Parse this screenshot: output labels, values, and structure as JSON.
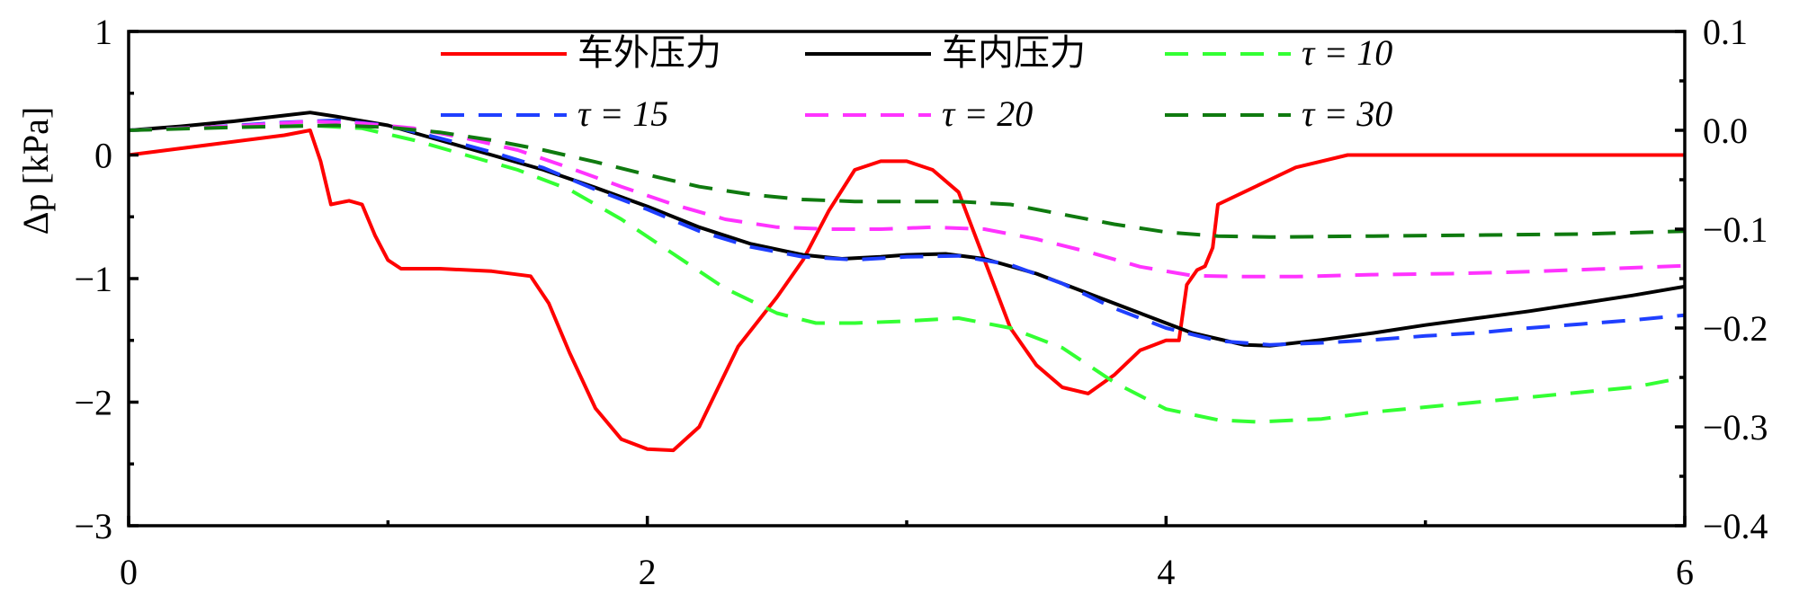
{
  "chart_data": {
    "type": "line",
    "title": "",
    "xlabel": "",
    "ylabel": "Δp [kPa]",
    "ylabel_right": "",
    "xlim": [
      0,
      6
    ],
    "ylim": [
      -3,
      1
    ],
    "ylim_right": [
      -0.4,
      0.1
    ],
    "grid": false,
    "legend_position": "top",
    "x_ticks": [
      "0",
      "2",
      "4",
      "6"
    ],
    "y_ticks_left": [
      "1",
      "0",
      "−1",
      "−2",
      "−3"
    ],
    "y_ticks_right": [
      "0.1",
      "0.0",
      "−0.1",
      "−0.2",
      "−0.3",
      "−0.4"
    ],
    "series": [
      {
        "name": "车外压力",
        "axis": "left",
        "color": "#ff0000",
        "style": "solid",
        "points": [
          [
            0,
            0
          ],
          [
            0.3,
            0.08
          ],
          [
            0.6,
            0.16
          ],
          [
            0.7,
            0.2
          ],
          [
            0.74,
            -0.05
          ],
          [
            0.78,
            -0.4
          ],
          [
            0.85,
            -0.37
          ],
          [
            0.9,
            -0.4
          ],
          [
            0.95,
            -0.65
          ],
          [
            1.0,
            -0.85
          ],
          [
            1.05,
            -0.92
          ],
          [
            1.2,
            -0.92
          ],
          [
            1.4,
            -0.94
          ],
          [
            1.55,
            -0.98
          ],
          [
            1.62,
            -1.2
          ],
          [
            1.7,
            -1.6
          ],
          [
            1.8,
            -2.05
          ],
          [
            1.9,
            -2.3
          ],
          [
            2.0,
            -2.38
          ],
          [
            2.1,
            -2.39
          ],
          [
            2.2,
            -2.2
          ],
          [
            2.35,
            -1.55
          ],
          [
            2.5,
            -1.15
          ],
          [
            2.6,
            -0.85
          ],
          [
            2.7,
            -0.45
          ],
          [
            2.8,
            -0.12
          ],
          [
            2.9,
            -0.05
          ],
          [
            3.0,
            -0.05
          ],
          [
            3.1,
            -0.12
          ],
          [
            3.2,
            -0.3
          ],
          [
            3.3,
            -0.85
          ],
          [
            3.4,
            -1.4
          ],
          [
            3.5,
            -1.7
          ],
          [
            3.6,
            -1.88
          ],
          [
            3.7,
            -1.93
          ],
          [
            3.8,
            -1.78
          ],
          [
            3.9,
            -1.58
          ],
          [
            4.0,
            -1.5
          ],
          [
            4.05,
            -1.5
          ],
          [
            4.08,
            -1.05
          ],
          [
            4.12,
            -0.93
          ],
          [
            4.15,
            -0.9
          ],
          [
            4.18,
            -0.75
          ],
          [
            4.2,
            -0.4
          ],
          [
            4.3,
            -0.3
          ],
          [
            4.4,
            -0.2
          ],
          [
            4.5,
            -0.1
          ],
          [
            4.6,
            -0.05
          ],
          [
            4.7,
            0
          ],
          [
            6,
            0
          ]
        ]
      },
      {
        "name": "车内压力",
        "axis": "right",
        "color": "#000000",
        "style": "solid",
        "points": [
          [
            0,
            0
          ],
          [
            0.2,
            0.004
          ],
          [
            0.4,
            0.009
          ],
          [
            0.6,
            0.015
          ],
          [
            0.7,
            0.018
          ],
          [
            0.8,
            0.014
          ],
          [
            1.0,
            0.005
          ],
          [
            1.2,
            -0.01
          ],
          [
            1.4,
            -0.025
          ],
          [
            1.6,
            -0.04
          ],
          [
            1.8,
            -0.058
          ],
          [
            2.0,
            -0.077
          ],
          [
            2.2,
            -0.098
          ],
          [
            2.4,
            -0.115
          ],
          [
            2.6,
            -0.126
          ],
          [
            2.75,
            -0.13
          ],
          [
            2.9,
            -0.128
          ],
          [
            3.0,
            -0.126
          ],
          [
            3.15,
            -0.125
          ],
          [
            3.3,
            -0.13
          ],
          [
            3.5,
            -0.145
          ],
          [
            3.7,
            -0.165
          ],
          [
            3.9,
            -0.185
          ],
          [
            4.1,
            -0.205
          ],
          [
            4.3,
            -0.217
          ],
          [
            4.4,
            -0.218
          ],
          [
            4.6,
            -0.212
          ],
          [
            4.8,
            -0.205
          ],
          [
            5.0,
            -0.197
          ],
          [
            5.2,
            -0.19
          ],
          [
            5.4,
            -0.183
          ],
          [
            5.6,
            -0.175
          ],
          [
            5.8,
            -0.167
          ],
          [
            6.0,
            -0.158
          ]
        ]
      },
      {
        "name": "τ = 10",
        "axis": "right",
        "color": "#33ff33",
        "style": "dashed",
        "points": [
          [
            0,
            0
          ],
          [
            0.4,
            0.004
          ],
          [
            0.7,
            0.005
          ],
          [
            0.9,
            0.002
          ],
          [
            1.1,
            -0.01
          ],
          [
            1.3,
            -0.025
          ],
          [
            1.5,
            -0.04
          ],
          [
            1.7,
            -0.06
          ],
          [
            1.9,
            -0.09
          ],
          [
            2.1,
            -0.125
          ],
          [
            2.3,
            -0.16
          ],
          [
            2.5,
            -0.185
          ],
          [
            2.65,
            -0.195
          ],
          [
            2.8,
            -0.195
          ],
          [
            3.0,
            -0.193
          ],
          [
            3.2,
            -0.19
          ],
          [
            3.4,
            -0.2
          ],
          [
            3.6,
            -0.22
          ],
          [
            3.8,
            -0.255
          ],
          [
            4.0,
            -0.282
          ],
          [
            4.2,
            -0.293
          ],
          [
            4.35,
            -0.295
          ],
          [
            4.6,
            -0.292
          ],
          [
            4.8,
            -0.285
          ],
          [
            5.0,
            -0.28
          ],
          [
            5.2,
            -0.275
          ],
          [
            5.4,
            -0.27
          ],
          [
            5.6,
            -0.265
          ],
          [
            5.8,
            -0.26
          ],
          [
            6.0,
            -0.25
          ]
        ]
      },
      {
        "name": "τ = 15",
        "axis": "right",
        "color": "#1f3fff",
        "style": "dashed",
        "points": [
          [
            0,
            0
          ],
          [
            0.3,
            0.003
          ],
          [
            0.6,
            0.008
          ],
          [
            0.8,
            0.01
          ],
          [
            1.0,
            0.005
          ],
          [
            1.2,
            -0.008
          ],
          [
            1.4,
            -0.022
          ],
          [
            1.6,
            -0.038
          ],
          [
            1.8,
            -0.06
          ],
          [
            2.0,
            -0.08
          ],
          [
            2.2,
            -0.102
          ],
          [
            2.4,
            -0.118
          ],
          [
            2.6,
            -0.128
          ],
          [
            2.8,
            -0.131
          ],
          [
            3.0,
            -0.128
          ],
          [
            3.2,
            -0.127
          ],
          [
            3.4,
            -0.136
          ],
          [
            3.6,
            -0.155
          ],
          [
            3.8,
            -0.18
          ],
          [
            4.0,
            -0.2
          ],
          [
            4.2,
            -0.213
          ],
          [
            4.4,
            -0.217
          ],
          [
            4.6,
            -0.215
          ],
          [
            4.8,
            -0.212
          ],
          [
            5.0,
            -0.208
          ],
          [
            5.2,
            -0.205
          ],
          [
            5.4,
            -0.2
          ],
          [
            5.6,
            -0.196
          ],
          [
            5.8,
            -0.192
          ],
          [
            6.0,
            -0.187
          ]
        ]
      },
      {
        "name": "τ = 20",
        "axis": "right",
        "color": "#ff33ff",
        "style": "dashed",
        "points": [
          [
            0,
            0
          ],
          [
            0.4,
            0.004
          ],
          [
            0.7,
            0.009
          ],
          [
            0.9,
            0.007
          ],
          [
            1.1,
            0.002
          ],
          [
            1.3,
            -0.008
          ],
          [
            1.5,
            -0.02
          ],
          [
            1.7,
            -0.038
          ],
          [
            1.9,
            -0.057
          ],
          [
            2.1,
            -0.075
          ],
          [
            2.3,
            -0.09
          ],
          [
            2.5,
            -0.098
          ],
          [
            2.7,
            -0.1
          ],
          [
            2.9,
            -0.1
          ],
          [
            3.1,
            -0.098
          ],
          [
            3.3,
            -0.1
          ],
          [
            3.5,
            -0.11
          ],
          [
            3.7,
            -0.123
          ],
          [
            3.9,
            -0.138
          ],
          [
            4.1,
            -0.147
          ],
          [
            4.3,
            -0.148
          ],
          [
            4.5,
            -0.148
          ],
          [
            4.8,
            -0.146
          ],
          [
            5.1,
            -0.145
          ],
          [
            5.4,
            -0.143
          ],
          [
            5.7,
            -0.14
          ],
          [
            6.0,
            -0.137
          ]
        ]
      },
      {
        "name": "τ = 30",
        "axis": "right",
        "color": "#0f7a0f",
        "style": "dashed",
        "points": [
          [
            0,
            0
          ],
          [
            0.4,
            0.003
          ],
          [
            0.8,
            0.005
          ],
          [
            1.0,
            0.003
          ],
          [
            1.2,
            -0.002
          ],
          [
            1.4,
            -0.01
          ],
          [
            1.6,
            -0.02
          ],
          [
            1.8,
            -0.032
          ],
          [
            2.0,
            -0.045
          ],
          [
            2.2,
            -0.057
          ],
          [
            2.4,
            -0.065
          ],
          [
            2.6,
            -0.07
          ],
          [
            2.8,
            -0.072
          ],
          [
            3.0,
            -0.072
          ],
          [
            3.2,
            -0.072
          ],
          [
            3.4,
            -0.075
          ],
          [
            3.6,
            -0.085
          ],
          [
            3.8,
            -0.095
          ],
          [
            4.0,
            -0.103
          ],
          [
            4.2,
            -0.107
          ],
          [
            4.4,
            -0.108
          ],
          [
            4.8,
            -0.107
          ],
          [
            5.2,
            -0.106
          ],
          [
            5.6,
            -0.105
          ],
          [
            6.0,
            -0.102
          ]
        ]
      }
    ]
  }
}
